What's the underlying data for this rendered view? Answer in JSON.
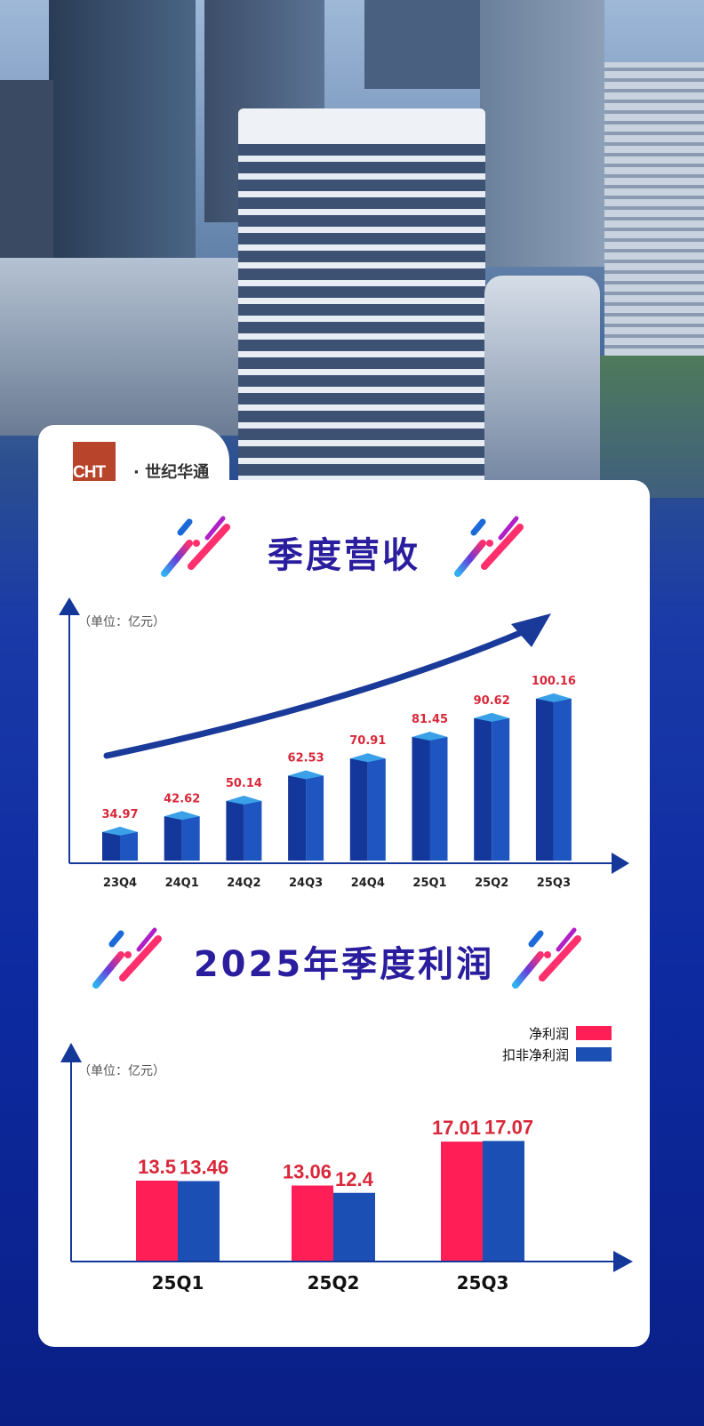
{
  "brand": {
    "logo_text": "CHT·世纪华通",
    "accent": "#b8442c"
  },
  "colors": {
    "title": "#2a1d9e",
    "bar_blue": "#1b4fb3",
    "bar_red": "#ff1e56",
    "label_red": "#d8283a",
    "axis": "#14389a"
  },
  "chart_data": [
    {
      "type": "bar",
      "title": "季度营收",
      "ylabel": "（单位：亿元）",
      "categories": [
        "23Q4",
        "24Q1",
        "24Q2",
        "24Q3",
        "24Q4",
        "25Q1",
        "25Q2",
        "25Q3"
      ],
      "values": [
        34.97,
        42.62,
        50.14,
        62.53,
        70.91,
        81.45,
        90.62,
        100.16
      ],
      "value_labels": [
        "34.97",
        "42.62",
        "50.14",
        "62.53",
        "70.91",
        "81.45",
        "90.62",
        "100.16"
      ],
      "ylim": [
        21,
        120
      ],
      "grid": false,
      "trend_arrow": true
    },
    {
      "type": "bar",
      "title": "2025年季度利润",
      "ylabel": "（单位：亿元）",
      "categories": [
        "25Q1",
        "25Q2",
        "25Q3"
      ],
      "series": [
        {
          "name": "净利润",
          "color": "#ff1e56",
          "values": [
            13.5,
            13.06,
            17.01
          ],
          "labels": [
            "13.5",
            "13.06",
            "17.01"
          ]
        },
        {
          "name": "扣非净利润",
          "color": "#1b4fb3",
          "values": [
            13.46,
            12.4,
            17.07
          ],
          "labels": [
            "13.46",
            "12.4",
            "17.07"
          ]
        }
      ],
      "ylim": [
        6.3,
        25
      ],
      "grid": false,
      "legend": "top-right"
    }
  ]
}
